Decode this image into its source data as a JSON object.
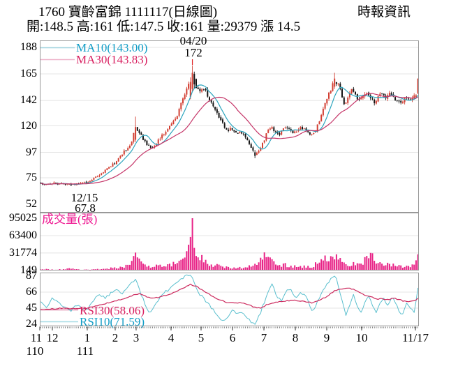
{
  "header": {
    "title": "1760 寶齡富錦 1111117(日線圖)",
    "source": "時報資訊",
    "stats": "開:148.5 高:161 低:147.5 收:161 量:29379 漲 14.5"
  },
  "price_panel": {
    "yticks": [
      188,
      165,
      142,
      120,
      97,
      75,
      52
    ],
    "ma10_label": "MA10(143.00)",
    "ma30_label": "MA30(143.83)",
    "annotations": {
      "peak_date": "04/20",
      "peak_price": "172",
      "low_date": "12/15",
      "low_price": "67.8"
    }
  },
  "volume_panel": {
    "title": "成交量(張)",
    "yticks": [
      95025,
      63400,
      31774,
      149
    ]
  },
  "rsi_panel": {
    "yticks": [
      87,
      66,
      45,
      24
    ],
    "rsi30_label": "RSI30(58.06)",
    "rsi10_label": "RSI10(71.59)"
  },
  "xaxis": {
    "months": [
      {
        "label": "11",
        "f": -0.0092
      },
      {
        "label": "12",
        "f": 0.0331
      },
      {
        "label": "1",
        "f": 0.1252
      },
      {
        "label": "2",
        "f": 0.1989
      },
      {
        "label": "3",
        "f": 0.2541
      },
      {
        "label": "4",
        "f": 0.3462
      },
      {
        "label": "5",
        "f": 0.4254
      },
      {
        "label": "6",
        "f": 0.5083
      },
      {
        "label": "7",
        "f": 0.5912
      },
      {
        "label": "8",
        "f": 0.6741
      },
      {
        "label": "9",
        "f": 0.7569
      },
      {
        "label": "10",
        "f": 0.849
      },
      {
        "label": "11/17",
        "f": 0.9908
      }
    ],
    "years": [
      {
        "label": "110",
        "f": -0.0129
      },
      {
        "label": "111",
        "f": 0.1197
      }
    ]
  },
  "colors": {
    "up": "#d23f33",
    "down": "#141414",
    "ma10_line": "#2ba4bd",
    "ma30_line": "#c53568",
    "ma10_text": "#0f9cc6",
    "ma30_text": "#d81e5f",
    "rsi10_line": "#5abfce",
    "rsi30_line": "#cc2a5e",
    "volume_bar": "#e82387",
    "volume_text": "#ee1590",
    "grid": "#e4e4e4",
    "panel_border": "#999999",
    "annotation": "#e02222",
    "axis_text": "#000000",
    "swatch_ma10": "#9fd4e0",
    "swatch_ma30": "#eeb4ca",
    "swatch_rsi10": "#a8dce6",
    "swatch_rsi30": "#e089ab"
  },
  "chart_data": {
    "type": "candlestick",
    "title": "1760 寶齡富錦 日線圖 (daily candles, volume, RSI)",
    "price_ylim": [
      52,
      188
    ],
    "volume_ylim": [
      0,
      95025
    ],
    "rsi_ylim": [
      24,
      87
    ],
    "n_candles": 200,
    "last_day": {
      "date": "11/17",
      "open": 148.5,
      "high": 161,
      "low": 147.5,
      "close": 161,
      "volume": 29379,
      "change": 14.5
    },
    "key_points": [
      {
        "date": "12/15",
        "price": 67.8,
        "kind": "low"
      },
      {
        "date": "04/20",
        "price": 172,
        "kind": "high"
      }
    ],
    "ma": {
      "windows": [
        10,
        30
      ],
      "ma10_last": 143.0,
      "ma30_last": 143.83
    },
    "rsi_last": {
      "rsi10": 71.59,
      "rsi30": 58.06
    },
    "close_path": [
      [
        0.0,
        70
      ],
      [
        0.015,
        69
      ],
      [
        0.03,
        70.5
      ],
      [
        0.045,
        69.5
      ],
      [
        0.06,
        70
      ],
      [
        0.079,
        68.6
      ],
      [
        0.095,
        70
      ],
      [
        0.11,
        71
      ],
      [
        0.125,
        72
      ],
      [
        0.14,
        74
      ],
      [
        0.155,
        77
      ],
      [
        0.17,
        81
      ],
      [
        0.185,
        85
      ],
      [
        0.2,
        89
      ],
      [
        0.212,
        94
      ],
      [
        0.225,
        99
      ],
      [
        0.238,
        104
      ],
      [
        0.252,
        119
      ],
      [
        0.262,
        114
      ],
      [
        0.272,
        108
      ],
      [
        0.285,
        102
      ],
      [
        0.298,
        100
      ],
      [
        0.31,
        107
      ],
      [
        0.322,
        112
      ],
      [
        0.335,
        117
      ],
      [
        0.348,
        122
      ],
      [
        0.36,
        128
      ],
      [
        0.372,
        139
      ],
      [
        0.385,
        150
      ],
      [
        0.395,
        158
      ],
      [
        0.401,
        166
      ],
      [
        0.408,
        158
      ],
      [
        0.415,
        152
      ],
      [
        0.425,
        150
      ],
      [
        0.435,
        151
      ],
      [
        0.445,
        144
      ],
      [
        0.455,
        138
      ],
      [
        0.465,
        132
      ],
      [
        0.475,
        126
      ],
      [
        0.485,
        120
      ],
      [
        0.495,
        116
      ],
      [
        0.505,
        118
      ],
      [
        0.515,
        115
      ],
      [
        0.525,
        114
      ],
      [
        0.535,
        113
      ],
      [
        0.545,
        110
      ],
      [
        0.555,
        104
      ],
      [
        0.567,
        95
      ],
      [
        0.578,
        98
      ],
      [
        0.59,
        106
      ],
      [
        0.6,
        114
      ],
      [
        0.61,
        119
      ],
      [
        0.62,
        115
      ],
      [
        0.63,
        112
      ],
      [
        0.64,
        116
      ],
      [
        0.65,
        119
      ],
      [
        0.66,
        116
      ],
      [
        0.67,
        113
      ],
      [
        0.68,
        116
      ],
      [
        0.69,
        119
      ],
      [
        0.7,
        117
      ],
      [
        0.71,
        114
      ],
      [
        0.72,
        112
      ],
      [
        0.73,
        117
      ],
      [
        0.74,
        125
      ],
      [
        0.75,
        135
      ],
      [
        0.76,
        145
      ],
      [
        0.77,
        153
      ],
      [
        0.78,
        160
      ],
      [
        0.788,
        156
      ],
      [
        0.796,
        149
      ],
      [
        0.805,
        139
      ],
      [
        0.815,
        145
      ],
      [
        0.825,
        151
      ],
      [
        0.835,
        147
      ],
      [
        0.845,
        141
      ],
      [
        0.855,
        146
      ],
      [
        0.865,
        149
      ],
      [
        0.875,
        144
      ],
      [
        0.885,
        139
      ],
      [
        0.895,
        145
      ],
      [
        0.905,
        148
      ],
      [
        0.915,
        143
      ],
      [
        0.925,
        149
      ],
      [
        0.935,
        146
      ],
      [
        0.945,
        141
      ],
      [
        0.955,
        139
      ],
      [
        0.965,
        144
      ],
      [
        0.975,
        142
      ],
      [
        0.985,
        145
      ],
      [
        0.993,
        146.5
      ],
      [
        1.0,
        161
      ]
    ],
    "volume_path": [
      [
        0.0,
        2600
      ],
      [
        0.03,
        1800
      ],
      [
        0.06,
        2200
      ],
      [
        0.079,
        3200
      ],
      [
        0.1,
        1600
      ],
      [
        0.13,
        1400
      ],
      [
        0.16,
        2600
      ],
      [
        0.19,
        4200
      ],
      [
        0.215,
        6500
      ],
      [
        0.235,
        9000
      ],
      [
        0.252,
        32000
      ],
      [
        0.262,
        16000
      ],
      [
        0.275,
        9500
      ],
      [
        0.29,
        6500
      ],
      [
        0.31,
        8000
      ],
      [
        0.33,
        9500
      ],
      [
        0.35,
        12000
      ],
      [
        0.37,
        17000
      ],
      [
        0.385,
        30000
      ],
      [
        0.395,
        48000
      ],
      [
        0.401,
        95025
      ],
      [
        0.406,
        62000
      ],
      [
        0.412,
        38000
      ],
      [
        0.42,
        26000
      ],
      [
        0.432,
        17000
      ],
      [
        0.445,
        13000
      ],
      [
        0.46,
        10000
      ],
      [
        0.475,
        8500
      ],
      [
        0.49,
        7000
      ],
      [
        0.51,
        5500
      ],
      [
        0.53,
        5000
      ],
      [
        0.548,
        6500
      ],
      [
        0.567,
        9500
      ],
      [
        0.582,
        16000
      ],
      [
        0.595,
        28000
      ],
      [
        0.605,
        19000
      ],
      [
        0.617,
        13000
      ],
      [
        0.63,
        9000
      ],
      [
        0.645,
        11000
      ],
      [
        0.66,
        8500
      ],
      [
        0.675,
        7000
      ],
      [
        0.69,
        7500
      ],
      [
        0.705,
        6500
      ],
      [
        0.72,
        8000
      ],
      [
        0.735,
        13000
      ],
      [
        0.75,
        18000
      ],
      [
        0.765,
        24000
      ],
      [
        0.778,
        27000
      ],
      [
        0.79,
        18000
      ],
      [
        0.8,
        14000
      ],
      [
        0.812,
        11000
      ],
      [
        0.825,
        13500
      ],
      [
        0.838,
        10000
      ],
      [
        0.852,
        11500
      ],
      [
        0.865,
        22000
      ],
      [
        0.873,
        33000
      ],
      [
        0.882,
        20000
      ],
      [
        0.895,
        11000
      ],
      [
        0.908,
        12500
      ],
      [
        0.92,
        15500
      ],
      [
        0.932,
        11000
      ],
      [
        0.945,
        9000
      ],
      [
        0.958,
        8000
      ],
      [
        0.97,
        9500
      ],
      [
        0.982,
        7500
      ],
      [
        0.993,
        9000
      ],
      [
        1.0,
        29379
      ]
    ],
    "rsi10_path": [
      [
        0.0,
        52
      ],
      [
        0.015,
        45
      ],
      [
        0.03,
        60
      ],
      [
        0.045,
        52
      ],
      [
        0.06,
        47
      ],
      [
        0.079,
        42
      ],
      [
        0.095,
        50
      ],
      [
        0.11,
        44
      ],
      [
        0.125,
        42
      ],
      [
        0.14,
        56
      ],
      [
        0.155,
        62
      ],
      [
        0.17,
        58
      ],
      [
        0.185,
        65
      ],
      [
        0.2,
        70
      ],
      [
        0.215,
        64
      ],
      [
        0.23,
        72
      ],
      [
        0.245,
        80
      ],
      [
        0.252,
        82
      ],
      [
        0.262,
        68
      ],
      [
        0.275,
        52
      ],
      [
        0.29,
        38
      ],
      [
        0.305,
        52
      ],
      [
        0.32,
        62
      ],
      [
        0.335,
        68
      ],
      [
        0.35,
        74
      ],
      [
        0.365,
        80
      ],
      [
        0.38,
        86
      ],
      [
        0.395,
        88
      ],
      [
        0.401,
        86
      ],
      [
        0.41,
        72
      ],
      [
        0.42,
        64
      ],
      [
        0.432,
        58
      ],
      [
        0.445,
        50
      ],
      [
        0.458,
        42
      ],
      [
        0.47,
        34
      ],
      [
        0.482,
        28
      ],
      [
        0.495,
        34
      ],
      [
        0.508,
        42
      ],
      [
        0.52,
        38
      ],
      [
        0.532,
        40
      ],
      [
        0.545,
        34
      ],
      [
        0.558,
        26
      ],
      [
        0.567,
        24
      ],
      [
        0.58,
        36
      ],
      [
        0.592,
        52
      ],
      [
        0.603,
        68
      ],
      [
        0.613,
        76
      ],
      [
        0.625,
        62
      ],
      [
        0.637,
        55
      ],
      [
        0.65,
        66
      ],
      [
        0.662,
        72
      ],
      [
        0.675,
        58
      ],
      [
        0.688,
        66
      ],
      [
        0.7,
        62
      ],
      [
        0.712,
        50
      ],
      [
        0.722,
        40
      ],
      [
        0.733,
        52
      ],
      [
        0.745,
        66
      ],
      [
        0.757,
        76
      ],
      [
        0.77,
        84
      ],
      [
        0.78,
        88
      ],
      [
        0.79,
        74
      ],
      [
        0.8,
        52
      ],
      [
        0.81,
        34
      ],
      [
        0.82,
        52
      ],
      [
        0.83,
        62
      ],
      [
        0.84,
        48
      ],
      [
        0.85,
        38
      ],
      [
        0.86,
        52
      ],
      [
        0.87,
        62
      ],
      [
        0.88,
        46
      ],
      [
        0.89,
        38
      ],
      [
        0.9,
        54
      ],
      [
        0.91,
        58
      ],
      [
        0.92,
        48
      ],
      [
        0.93,
        60
      ],
      [
        0.94,
        52
      ],
      [
        0.95,
        42
      ],
      [
        0.96,
        36
      ],
      [
        0.97,
        52
      ],
      [
        0.98,
        44
      ],
      [
        0.99,
        40
      ],
      [
        1.0,
        71.59
      ]
    ],
    "rsi30_path": [
      [
        0.0,
        43
      ],
      [
        0.03,
        44
      ],
      [
        0.06,
        45
      ],
      [
        0.09,
        44
      ],
      [
        0.12,
        45
      ],
      [
        0.15,
        48
      ],
      [
        0.18,
        52
      ],
      [
        0.21,
        56
      ],
      [
        0.24,
        61
      ],
      [
        0.26,
        64
      ],
      [
        0.28,
        60
      ],
      [
        0.3,
        58
      ],
      [
        0.32,
        60
      ],
      [
        0.34,
        63
      ],
      [
        0.36,
        67
      ],
      [
        0.38,
        72
      ],
      [
        0.395,
        76
      ],
      [
        0.41,
        74
      ],
      [
        0.43,
        68
      ],
      [
        0.45,
        62
      ],
      [
        0.47,
        57
      ],
      [
        0.49,
        53
      ],
      [
        0.51,
        52
      ],
      [
        0.53,
        52
      ],
      [
        0.55,
        50
      ],
      [
        0.567,
        46
      ],
      [
        0.585,
        45
      ],
      [
        0.6,
        50
      ],
      [
        0.62,
        52
      ],
      [
        0.64,
        54
      ],
      [
        0.66,
        55
      ],
      [
        0.68,
        55
      ],
      [
        0.7,
        54
      ],
      [
        0.72,
        52
      ],
      [
        0.74,
        55
      ],
      [
        0.76,
        61
      ],
      [
        0.78,
        68
      ],
      [
        0.8,
        70
      ],
      [
        0.815,
        71
      ],
      [
        0.83,
        70
      ],
      [
        0.845,
        66
      ],
      [
        0.86,
        62
      ],
      [
        0.875,
        60
      ],
      [
        0.89,
        57
      ],
      [
        0.905,
        57
      ],
      [
        0.92,
        56
      ],
      [
        0.935,
        58
      ],
      [
        0.95,
        56
      ],
      [
        0.965,
        54
      ],
      [
        0.98,
        54
      ],
      [
        0.99,
        54
      ],
      [
        1.0,
        58.06
      ]
    ],
    "candle_overrides": {
      "16": [
        69.8,
        70.6,
        67.8,
        68.4
      ],
      "50": [
        108,
        128,
        106,
        119
      ],
      "79": [
        145,
        162,
        143,
        158
      ],
      "80": [
        152,
        172,
        150,
        166
      ],
      "81": [
        165,
        167,
        152,
        156
      ],
      "113": [
        97,
        99,
        92,
        94
      ],
      "155": [
        154,
        166,
        152,
        161
      ],
      "198": [
        145,
        147.5,
        143.5,
        146.5
      ],
      "199": [
        148.5,
        161,
        147.5,
        161
      ]
    },
    "volume_overrides": {
      "50": 32500,
      "79": 61000,
      "80": 95025,
      "81": 41000,
      "199": 29379
    }
  }
}
